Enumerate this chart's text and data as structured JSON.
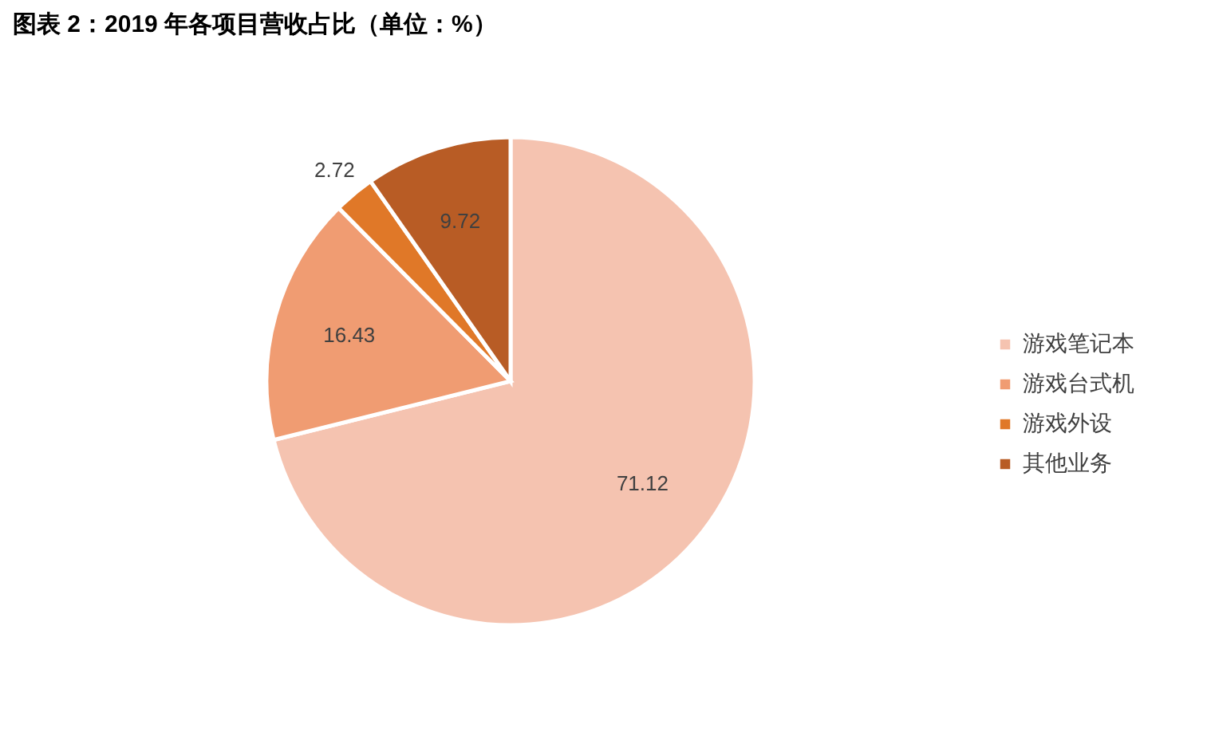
{
  "chart_data": {
    "type": "pie",
    "title": "图表 2：2019 年各项目营收占比（单位：%）",
    "categories": [
      "游戏笔记本",
      "游戏台式机",
      "游戏外设",
      "其他业务"
    ],
    "values": [
      71.12,
      16.43,
      2.72,
      9.72
    ],
    "colors": [
      "#f5c3b0",
      "#f09c72",
      "#e07828",
      "#b85c25"
    ],
    "data_labels": true,
    "legend": "right"
  }
}
